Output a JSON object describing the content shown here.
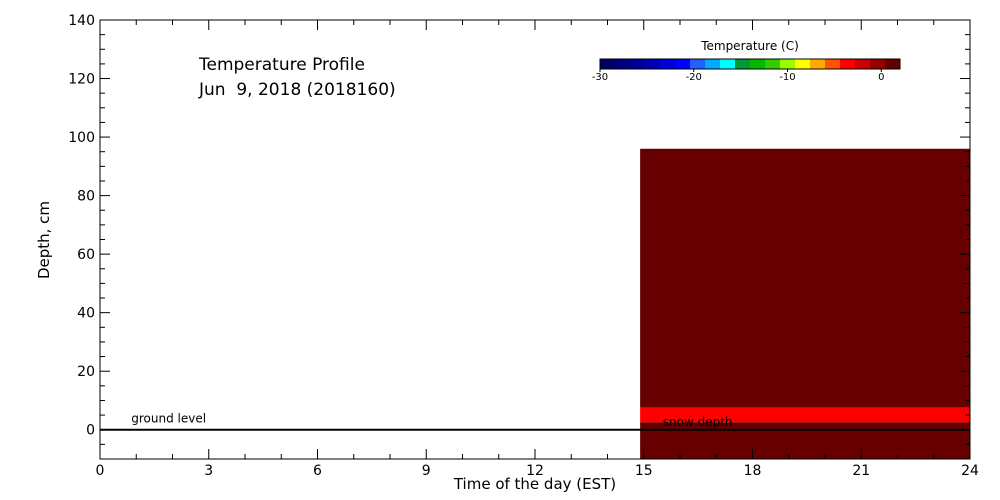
{
  "chart_data": {
    "type": "heatmap",
    "title_line1": "Temperature Profile",
    "title_line2": "Jun  9, 2018 (2018160)",
    "xlabel": "Time of the day (EST)",
    "ylabel": "Depth, cm",
    "xlim": [
      0,
      24
    ],
    "ylim": [
      -10,
      140
    ],
    "x_ticks": [
      "0",
      "3",
      "6",
      "9",
      "12",
      "15",
      "18",
      "21",
      "24"
    ],
    "y_ticks": [
      "0",
      "20",
      "40",
      "60",
      "80",
      "100",
      "120",
      "140"
    ],
    "colorbar": {
      "title": "Temperature (C)",
      "range": [
        -30,
        2
      ],
      "ticks": [
        "-30",
        "-20",
        "-10",
        "0"
      ],
      "colors": [
        "#000066",
        "#00007f",
        "#000099",
        "#0000b3",
        "#0000d8",
        "#0000ff",
        "#2060ff",
        "#00aaff",
        "#00ffff",
        "#009933",
        "#00bb00",
        "#33cc00",
        "#99ff00",
        "#ffff00",
        "#ffaa00",
        "#ff5500",
        "#ff0000",
        "#cc0000",
        "#990000",
        "#660000"
      ]
    },
    "regions": [
      {
        "x_start": 14.9,
        "x_end": 24,
        "y_bottom": 7.5,
        "y_top": 96,
        "color": "#660000"
      },
      {
        "x_start": 14.9,
        "x_end": 24,
        "y_bottom": 2.5,
        "y_top": 7.5,
        "color": "#ff0000"
      },
      {
        "x_start": 14.9,
        "x_end": 24,
        "y_bottom": -10,
        "y_top": 2.5,
        "color": "#660000"
      }
    ],
    "ground_level": {
      "y": 0,
      "label": "ground level",
      "label_x": 1
    },
    "snow_depth": {
      "y": 2,
      "label": "snow depth",
      "label_x": 15.8
    }
  }
}
